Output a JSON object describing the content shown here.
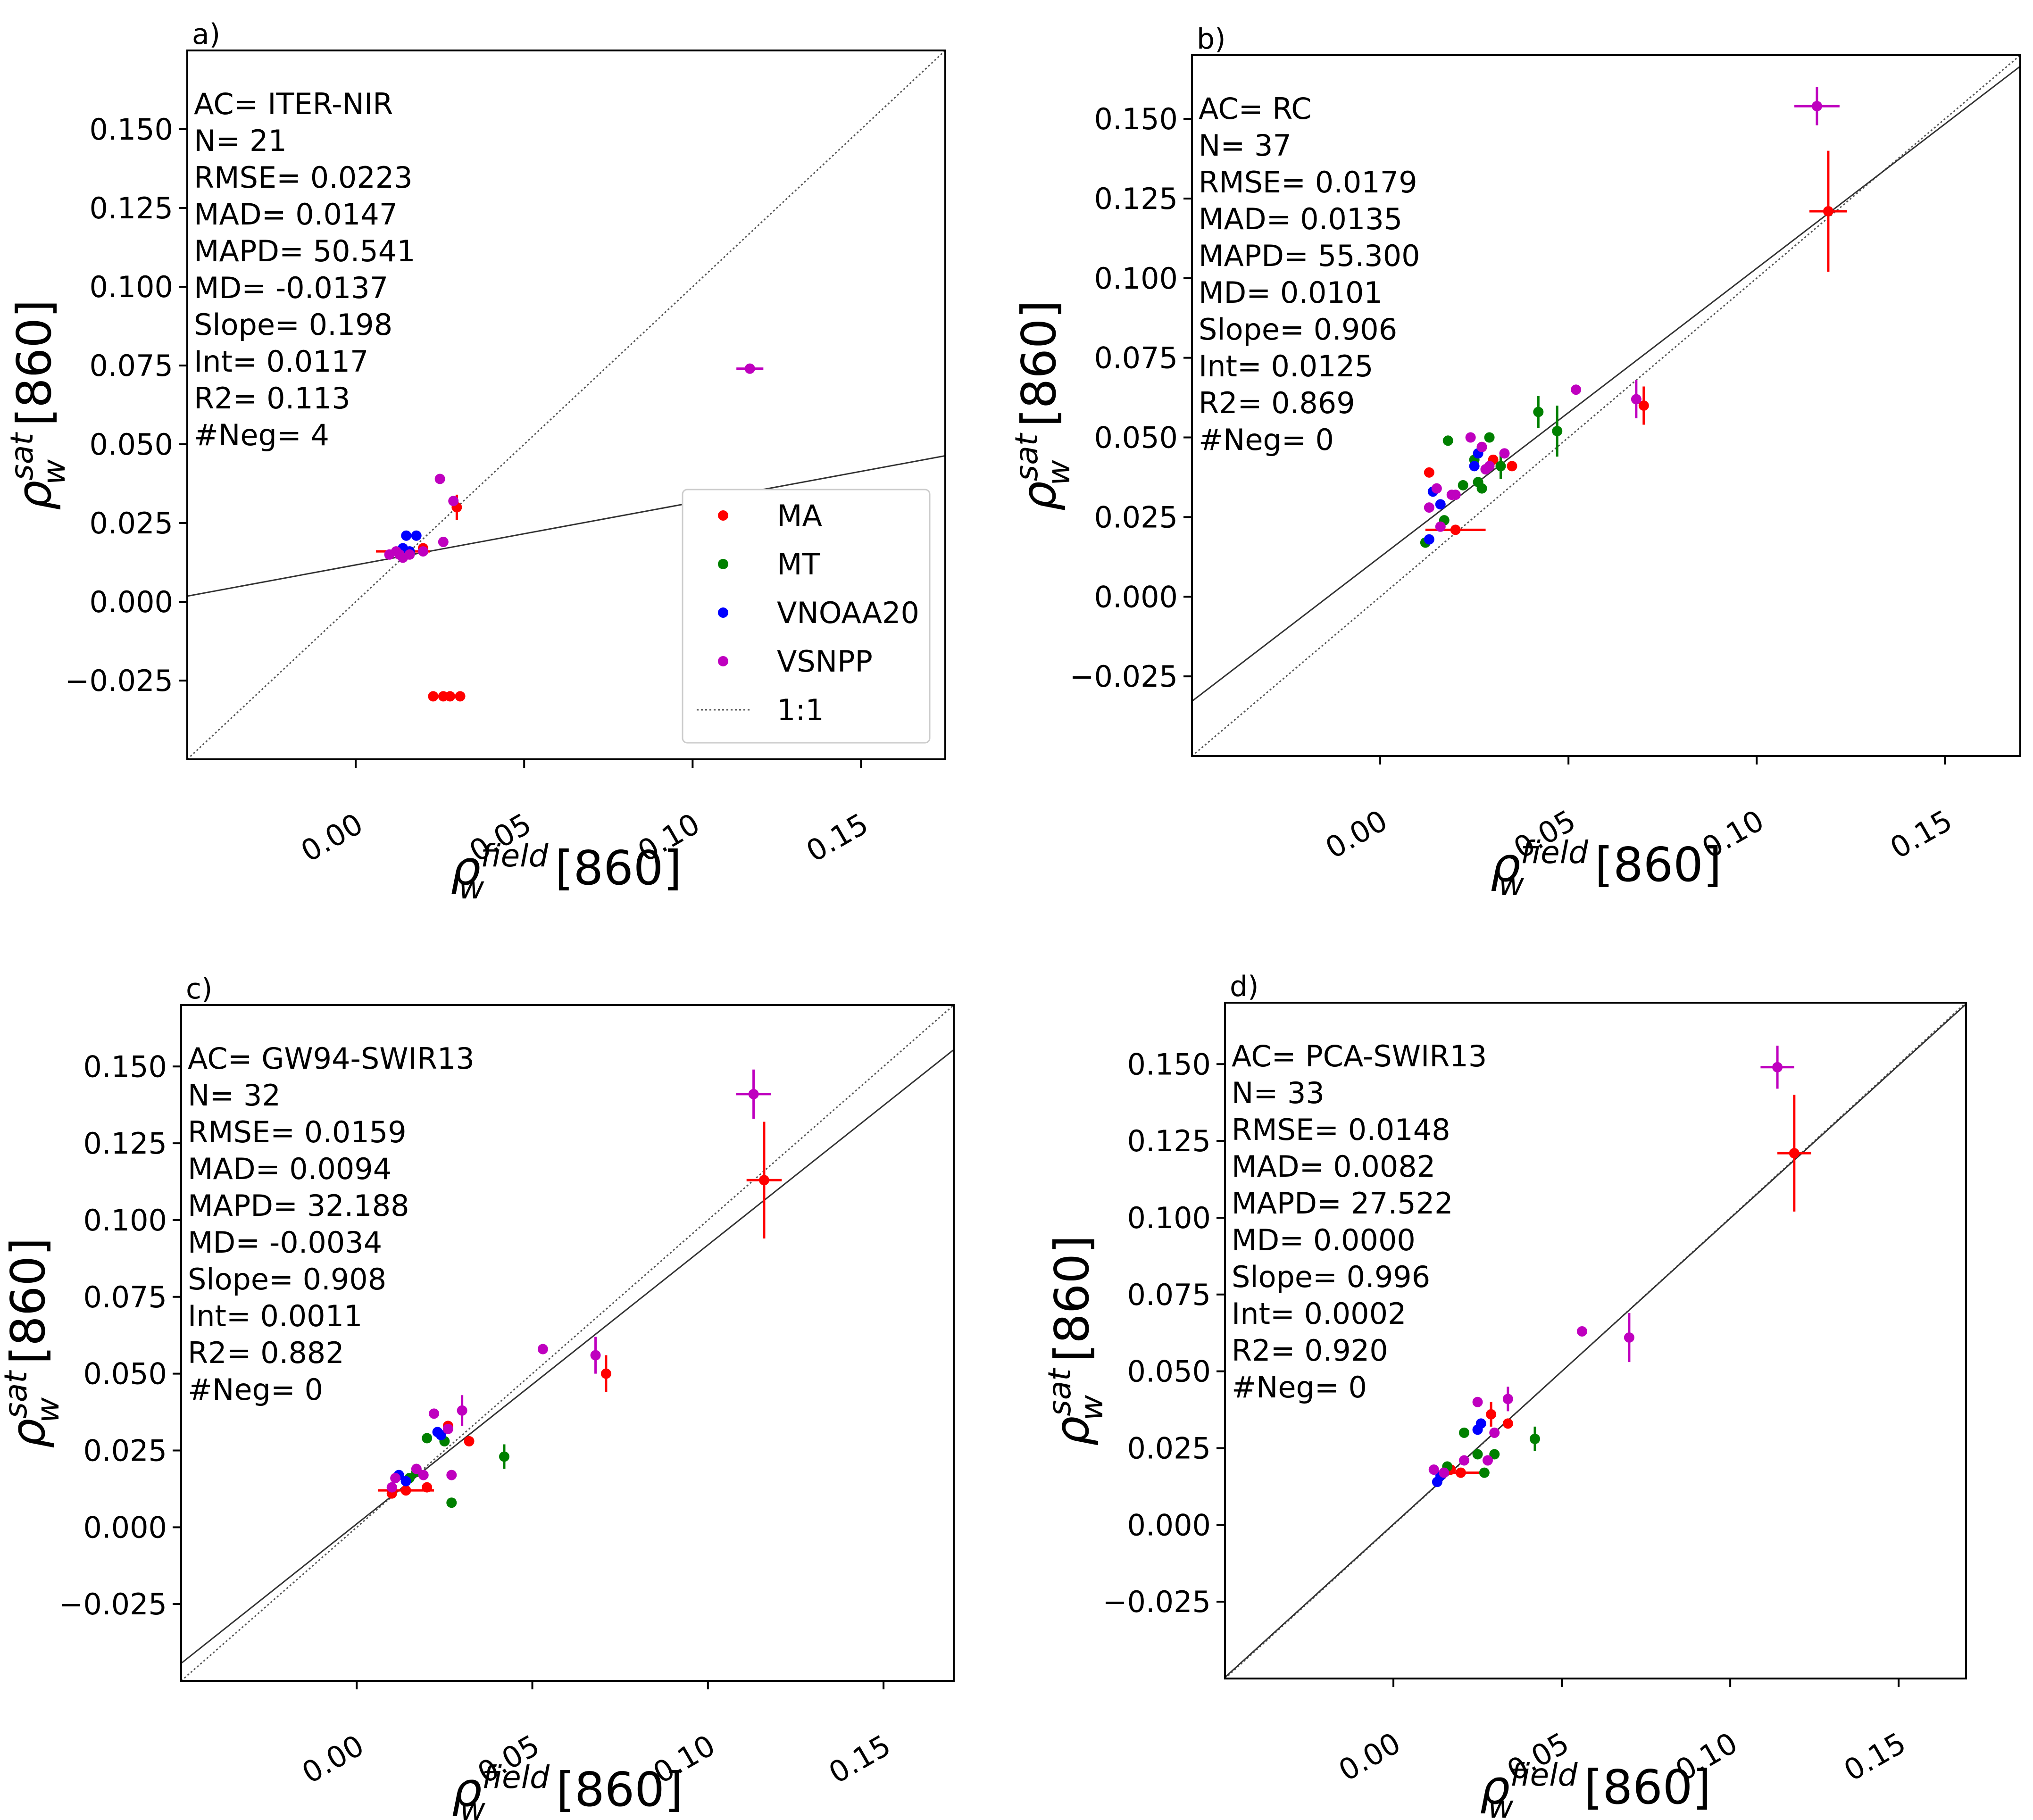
{
  "colors": {
    "MA": "#ff0000",
    "MT": "#008000",
    "VNOAA20": "#0000ff",
    "VSNPP": "#bf00bf"
  },
  "chart_data": [
    {
      "type": "scatter",
      "panel_label": "a)",
      "xlabel": {
        "base": "ρ",
        "sub": "w",
        "sup": "field",
        "rest": "[860]"
      },
      "ylabel": {
        "base": "ρ",
        "sub": "w",
        "sup": "sat",
        "rest": "[860]"
      },
      "xlim": [
        -0.05,
        0.175
      ],
      "ylim": [
        -0.05,
        0.175
      ],
      "xticks": [
        0.0,
        0.05,
        0.1,
        0.15
      ],
      "xtick_labels": [
        "0.00",
        "0.05",
        "0.10",
        "0.15"
      ],
      "yticks": [
        -0.025,
        0.0,
        0.025,
        0.05,
        0.075,
        0.1,
        0.125,
        0.15
      ],
      "ytick_labels": [
        "−0.025",
        "0.000",
        "0.025",
        "0.050",
        "0.075",
        "0.100",
        "0.125",
        "0.150"
      ],
      "stats": [
        "AC= ITER-NIR",
        "N= 21",
        "RMSE= 0.0223",
        "MAD= 0.0147",
        "MAPD= 50.541",
        "MD= -0.0137",
        "Slope= 0.198",
        "Int= 0.0117",
        "R2= 0.113",
        "#Neg= 4"
      ],
      "fit": {
        "slope": 0.198,
        "intercept": 0.0117
      },
      "legend": {
        "entries": [
          "MA",
          "MT",
          "VNOAA20",
          "VSNPP",
          "1:1"
        ],
        "location": "lower-right"
      },
      "series": [
        {
          "name": "MA",
          "points": [
            [
              0.03,
              0.03,
              0.0,
              0.004
            ],
            [
              0.02,
              0.017,
              0.0,
              0.0
            ],
            [
              0.014,
              0.016,
              0.008,
              0.0
            ],
            [
              0.023,
              -0.03,
              0.0,
              0.0
            ],
            [
              0.026,
              -0.03,
              0.0,
              0.0
            ],
            [
              0.028,
              -0.03,
              0.0,
              0.0
            ],
            [
              0.031,
              -0.03,
              0.0,
              0.0
            ]
          ]
        },
        {
          "name": "MT",
          "points": []
        },
        {
          "name": "VNOAA20",
          "points": [
            [
              0.015,
              0.021,
              0.0,
              0.0
            ],
            [
              0.018,
              0.021,
              0.0,
              0.0
            ],
            [
              0.014,
              0.017,
              0.0,
              0.0
            ],
            [
              0.016,
              0.016,
              0.0,
              0.0
            ]
          ]
        },
        {
          "name": "VSNPP",
          "points": [
            [
              0.117,
              0.074,
              0.004,
              0.0
            ],
            [
              0.025,
              0.039,
              0.0,
              0.0
            ],
            [
              0.029,
              0.032,
              0.0,
              0.0
            ],
            [
              0.026,
              0.019,
              0.0,
              0.0
            ],
            [
              0.02,
              0.016,
              0.0,
              0.0
            ],
            [
              0.012,
              0.016,
              0.0,
              0.0
            ],
            [
              0.013,
              0.015,
              0.0,
              0.0
            ],
            [
              0.014,
              0.014,
              0.0,
              0.0
            ],
            [
              0.016,
              0.015,
              0.0,
              0.0
            ],
            [
              0.01,
              0.015,
              0.0,
              0.0
            ]
          ]
        }
      ]
    },
    {
      "type": "scatter",
      "panel_label": "b)",
      "xlabel": {
        "base": "ρ",
        "sub": "w",
        "sup": "field",
        "rest": "[860]"
      },
      "ylabel": {
        "base": "ρ",
        "sub": "w",
        "sup": "sat",
        "rest": "[860]"
      },
      "xlim": [
        -0.05,
        0.17
      ],
      "ylim": [
        -0.05,
        0.17
      ],
      "xticks": [
        0.0,
        0.05,
        0.1,
        0.15
      ],
      "xtick_labels": [
        "0.00",
        "0.05",
        "0.10",
        "0.15"
      ],
      "yticks": [
        -0.025,
        0.0,
        0.025,
        0.05,
        0.075,
        0.1,
        0.125,
        0.15
      ],
      "ytick_labels": [
        "−0.025",
        "0.000",
        "0.025",
        "0.050",
        "0.075",
        "0.100",
        "0.125",
        "0.150"
      ],
      "stats": [
        "AC= RC",
        "N= 37",
        "RMSE= 0.0179",
        "MAD= 0.0135",
        "MAPD= 55.300",
        "MD= 0.0101",
        "Slope= 0.906",
        "Int= 0.0125",
        "R2= 0.869",
        "#Neg= 0"
      ],
      "fit": {
        "slope": 0.906,
        "intercept": 0.0125
      },
      "legend": null,
      "series": [
        {
          "name": "MA",
          "points": [
            [
              0.119,
              0.121,
              0.005,
              0.019
            ],
            [
              0.07,
              0.06,
              0.0,
              0.006
            ],
            [
              0.02,
              0.021,
              0.008,
              0.0
            ],
            [
              0.013,
              0.039,
              0.0,
              0.0
            ],
            [
              0.027,
              0.047,
              0.0,
              0.0
            ],
            [
              0.03,
              0.043,
              0.0,
              0.0
            ],
            [
              0.035,
              0.041,
              0.0,
              0.0
            ]
          ]
        },
        {
          "name": "MT",
          "points": [
            [
              0.042,
              0.058,
              0.0,
              0.005
            ],
            [
              0.047,
              0.052,
              0.0,
              0.008
            ],
            [
              0.029,
              0.05,
              0.0,
              0.0
            ],
            [
              0.018,
              0.049,
              0.0,
              0.0
            ],
            [
              0.032,
              0.041,
              0.0,
              0.004
            ],
            [
              0.026,
              0.036,
              0.0,
              0.0
            ],
            [
              0.027,
              0.034,
              0.0,
              0.0
            ],
            [
              0.022,
              0.035,
              0.0,
              0.0
            ],
            [
              0.012,
              0.017,
              0.0,
              0.0
            ],
            [
              0.017,
              0.024,
              0.0,
              0.0
            ],
            [
              0.025,
              0.043,
              0.0,
              0.0
            ],
            [
              0.028,
              0.04,
              0.0,
              0.0
            ]
          ]
        },
        {
          "name": "VNOAA20",
          "points": [
            [
              0.016,
              0.029,
              0.0,
              0.0
            ],
            [
              0.014,
              0.033,
              0.0,
              0.0
            ],
            [
              0.026,
              0.045,
              0.0,
              0.0
            ],
            [
              0.013,
              0.018,
              0.0,
              0.0
            ],
            [
              0.025,
              0.041,
              0.0,
              0.0
            ]
          ]
        },
        {
          "name": "VSNPP",
          "points": [
            [
              0.116,
              0.154,
              0.006,
              0.006
            ],
            [
              0.068,
              0.062,
              0.0,
              0.006
            ],
            [
              0.052,
              0.065,
              0.0,
              0.0
            ],
            [
              0.027,
              0.047,
              0.0,
              0.0
            ],
            [
              0.033,
              0.045,
              0.0,
              0.0
            ],
            [
              0.024,
              0.05,
              0.0,
              0.0
            ],
            [
              0.029,
              0.041,
              0.0,
              0.0
            ],
            [
              0.015,
              0.034,
              0.0,
              0.0
            ],
            [
              0.019,
              0.032,
              0.0,
              0.0
            ],
            [
              0.013,
              0.028,
              0.0,
              0.0
            ],
            [
              0.016,
              0.022,
              0.0,
              0.0
            ],
            [
              0.02,
              0.032,
              0.0,
              0.0
            ],
            [
              0.028,
              0.04,
              0.0,
              0.0
            ]
          ]
        }
      ]
    },
    {
      "type": "scatter",
      "panel_label": "c)",
      "xlabel": {
        "base": "ρ",
        "sub": "w",
        "sup": "field",
        "rest": "[860]"
      },
      "ylabel": {
        "base": "ρ",
        "sub": "w",
        "sup": "sat",
        "rest": "[860]"
      },
      "xlim": [
        -0.05,
        0.17
      ],
      "ylim": [
        -0.05,
        0.17
      ],
      "xticks": [
        0.0,
        0.05,
        0.1,
        0.15
      ],
      "xtick_labels": [
        "0.00",
        "0.05",
        "0.10",
        "0.15"
      ],
      "yticks": [
        -0.025,
        0.0,
        0.025,
        0.05,
        0.075,
        0.1,
        0.125,
        0.15
      ],
      "ytick_labels": [
        "−0.025",
        "0.000",
        "0.025",
        "0.050",
        "0.075",
        "0.100",
        "0.125",
        "0.150"
      ],
      "stats": [
        "AC= GW94-SWIR13",
        "N= 32",
        "RMSE= 0.0159",
        "MAD= 0.0094",
        "MAPD= 32.188",
        "MD= -0.0034",
        "Slope= 0.908",
        "Int= 0.0011",
        "R2= 0.882",
        "#Neg= 0"
      ],
      "fit": {
        "slope": 0.908,
        "intercept": 0.0011
      },
      "legend": null,
      "series": [
        {
          "name": "MA",
          "points": [
            [
              0.116,
              0.113,
              0.005,
              0.019
            ],
            [
              0.071,
              0.05,
              0.0,
              0.006
            ],
            [
              0.032,
              0.028,
              0.0,
              0.0
            ],
            [
              0.026,
              0.033,
              0.0,
              0.0
            ],
            [
              0.014,
              0.012,
              0.008,
              0.0
            ],
            [
              0.02,
              0.013,
              0.0,
              0.0
            ],
            [
              0.01,
              0.011,
              0.0,
              0.0
            ]
          ]
        },
        {
          "name": "MT",
          "points": [
            [
              0.042,
              0.023,
              0.0,
              0.004
            ],
            [
              0.027,
              0.008,
              0.0,
              0.0
            ],
            [
              0.02,
              0.029,
              0.0,
              0.0
            ],
            [
              0.025,
              0.028,
              0.0,
              0.0
            ],
            [
              0.015,
              0.016,
              0.0,
              0.0
            ],
            [
              0.017,
              0.018,
              0.0,
              0.0
            ]
          ]
        },
        {
          "name": "VNOAA20",
          "points": [
            [
              0.012,
              0.017,
              0.0,
              0.0
            ],
            [
              0.014,
              0.015,
              0.0,
              0.0
            ],
            [
              0.023,
              0.031,
              0.0,
              0.0
            ],
            [
              0.024,
              0.03,
              0.0,
              0.0
            ]
          ]
        },
        {
          "name": "VSNPP",
          "points": [
            [
              0.113,
              0.141,
              0.005,
              0.008
            ],
            [
              0.068,
              0.056,
              0.0,
              0.006
            ],
            [
              0.053,
              0.058,
              0.0,
              0.0
            ],
            [
              0.03,
              0.038,
              0.0,
              0.005
            ],
            [
              0.022,
              0.037,
              0.0,
              0.0
            ],
            [
              0.027,
              0.017,
              0.0,
              0.0
            ],
            [
              0.017,
              0.019,
              0.0,
              0.0
            ],
            [
              0.019,
              0.017,
              0.0,
              0.0
            ],
            [
              0.011,
              0.016,
              0.0,
              0.0
            ],
            [
              0.01,
              0.013,
              0.0,
              0.0
            ],
            [
              0.026,
              0.032,
              0.0,
              0.0
            ]
          ]
        }
      ]
    },
    {
      "type": "scatter",
      "panel_label": "d)",
      "xlabel": {
        "base": "ρ",
        "sub": "w",
        "sup": "field",
        "rest": "[860]"
      },
      "ylabel": {
        "base": "ρ",
        "sub": "w",
        "sup": "sat",
        "rest": "[860]"
      },
      "xlim": [
        -0.05,
        0.17
      ],
      "ylim": [
        -0.05,
        0.17
      ],
      "xticks": [
        0.0,
        0.05,
        0.1,
        0.15
      ],
      "xtick_labels": [
        "0.00",
        "0.05",
        "0.10",
        "0.15"
      ],
      "yticks": [
        -0.025,
        0.0,
        0.025,
        0.05,
        0.075,
        0.1,
        0.125,
        0.15
      ],
      "ytick_labels": [
        "−0.025",
        "0.000",
        "0.025",
        "0.050",
        "0.075",
        "0.100",
        "0.125",
        "0.150"
      ],
      "stats": [
        "AC= PCA-SWIR13",
        "N= 33",
        "RMSE= 0.0148",
        "MAD= 0.0082",
        "MAPD= 27.522",
        "MD= 0.0000",
        "Slope= 0.996",
        "Int= 0.0002",
        "R2= 0.920",
        "#Neg= 0"
      ],
      "fit": {
        "slope": 0.996,
        "intercept": 0.0002
      },
      "legend": null,
      "series": [
        {
          "name": "MA",
          "points": [
            [
              0.119,
              0.121,
              0.005,
              0.019
            ],
            [
              0.034,
              0.033,
              0.0,
              0.0
            ],
            [
              0.029,
              0.036,
              0.0,
              0.004
            ],
            [
              0.02,
              0.017,
              0.008,
              0.0
            ],
            [
              0.017,
              0.018,
              0.0,
              0.0
            ]
          ]
        },
        {
          "name": "MT",
          "points": [
            [
              0.042,
              0.028,
              0.0,
              0.004
            ],
            [
              0.027,
              0.017,
              0.0,
              0.0
            ],
            [
              0.021,
              0.03,
              0.0,
              0.0
            ],
            [
              0.03,
              0.023,
              0.0,
              0.0
            ],
            [
              0.025,
              0.023,
              0.0,
              0.0
            ],
            [
              0.016,
              0.019,
              0.0,
              0.0
            ]
          ]
        },
        {
          "name": "VNOAA20",
          "points": [
            [
              0.013,
              0.014,
              0.0,
              0.0
            ],
            [
              0.014,
              0.016,
              0.0,
              0.0
            ],
            [
              0.025,
              0.031,
              0.0,
              0.0
            ],
            [
              0.026,
              0.033,
              0.0,
              0.0
            ]
          ]
        },
        {
          "name": "VSNPP",
          "points": [
            [
              0.114,
              0.149,
              0.005,
              0.007
            ],
            [
              0.07,
              0.061,
              0.0,
              0.008
            ],
            [
              0.056,
              0.063,
              0.0,
              0.0
            ],
            [
              0.034,
              0.041,
              0.0,
              0.004
            ],
            [
              0.025,
              0.04,
              0.0,
              0.0
            ],
            [
              0.03,
              0.03,
              0.0,
              0.0
            ],
            [
              0.021,
              0.021,
              0.0,
              0.0
            ],
            [
              0.012,
              0.018,
              0.0,
              0.0
            ],
            [
              0.015,
              0.017,
              0.0,
              0.0
            ],
            [
              0.028,
              0.021,
              0.0,
              0.0
            ]
          ]
        }
      ]
    }
  ]
}
